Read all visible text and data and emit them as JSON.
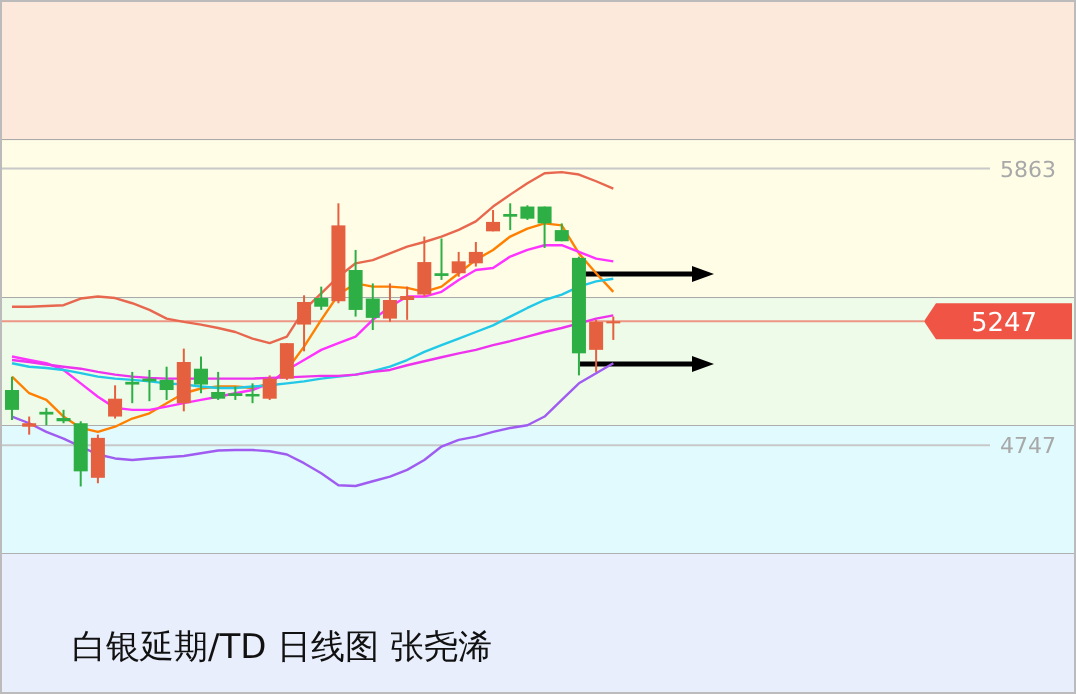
{
  "chart_data": {
    "type": "candlestick",
    "title": "白银延期/TD  日线图 张尧浠",
    "categories": [
      null,
      null,
      null,
      null,
      null,
      null,
      null,
      null,
      null,
      null,
      null,
      null,
      null,
      null,
      null,
      null,
      null,
      null,
      null,
      null,
      null,
      null,
      null,
      null,
      null,
      null,
      null,
      null,
      null,
      null,
      null,
      null,
      null,
      null,
      null,
      null
    ],
    "ohlc": [
      [
        4970,
        5024,
        4849,
        4890
      ],
      [
        4822,
        4863,
        4790,
        4836
      ],
      [
        4882,
        4898,
        4828,
        4871
      ],
      [
        4857,
        4890,
        4836,
        4844
      ],
      [
        4836,
        4844,
        4581,
        4642
      ],
      [
        4616,
        4790,
        4594,
        4777
      ],
      [
        4863,
        4989,
        4855,
        4935
      ],
      [
        5003,
        5043,
        4917,
        4992
      ],
      [
        5016,
        5051,
        4925,
        5005
      ],
      [
        5011,
        5064,
        4930,
        4970
      ],
      [
        4917,
        5137,
        4884,
        5083
      ],
      [
        5056,
        5105,
        4957,
        4992
      ],
      [
        4962,
        5043,
        4930,
        4935
      ],
      [
        4957,
        4984,
        4930,
        4946
      ],
      [
        4954,
        4997,
        4917,
        4944
      ],
      [
        4935,
        5029,
        4930,
        5016
      ],
      [
        5016,
        5159,
        5011,
        5159
      ],
      [
        5234,
        5352,
        5126,
        5325
      ],
      [
        5341,
        5387,
        5293,
        5306
      ],
      [
        5328,
        5723,
        5320,
        5634
      ],
      [
        5454,
        5535,
        5266,
        5293
      ],
      [
        5339,
        5400,
        5212,
        5261
      ],
      [
        5258,
        5400,
        5245,
        5333
      ],
      [
        5333,
        5387,
        5253,
        5349
      ],
      [
        5355,
        5589,
        5347,
        5486
      ],
      [
        5441,
        5581,
        5414,
        5430
      ],
      [
        5441,
        5527,
        5427,
        5489
      ],
      [
        5481,
        5567,
        5468,
        5527
      ],
      [
        5610,
        5696,
        5610,
        5648
      ],
      [
        5680,
        5723,
        5615,
        5669
      ],
      [
        5710,
        5715,
        5656,
        5661
      ],
      [
        5710,
        5710,
        5543,
        5642
      ],
      [
        5615,
        5642,
        5570,
        5570
      ],
      [
        5503,
        5508,
        5029,
        5118
      ],
      [
        5132,
        5253,
        5043,
        5245
      ],
      [
        5242,
        5266,
        5172,
        5247
      ]
    ],
    "colors": [
      "#2eaf45",
      "#e5603f",
      "#2eaf45",
      "#2eaf45",
      "#2eaf45",
      "#e5603f",
      "#e5603f",
      "#2eaf45",
      "#2eaf45",
      "#2eaf45",
      "#e5603f",
      "#2eaf45",
      "#2eaf45",
      "#2eaf45",
      "#2eaf45",
      "#e5603f",
      "#e5603f",
      "#e5603f",
      "#2eaf45",
      "#e5603f",
      "#2eaf45",
      "#2eaf45",
      "#e5603f",
      "#e5603f",
      "#e5603f",
      "#2eaf45",
      "#e5603f",
      "#e5603f",
      "#e5603f",
      "#2eaf45",
      "#2eaf45",
      "#2eaf45",
      "#2eaf45",
      "#2eaf45",
      "#e5603f",
      "#e5603f"
    ],
    "series": [
      {
        "type": "line",
        "color": "#e8674f",
        "values": [
          5306,
          5306,
          5309,
          5312,
          5339,
          5347,
          5341,
          5320,
          5293,
          5258,
          5245,
          5234,
          5220,
          5204,
          5177,
          5159,
          5185,
          5293,
          5360,
          5427,
          5481,
          5494,
          5521,
          5548,
          5567,
          5589,
          5616,
          5650,
          5710,
          5758,
          5804,
          5844,
          5849,
          5839,
          5812,
          5782
        ]
      },
      {
        "type": "line",
        "color": "#ff8000",
        "values": [
          5024,
          4957,
          4930,
          4863,
          4817,
          4801,
          4822,
          4855,
          4876,
          4917,
          4957,
          4976,
          4984,
          4984,
          4978,
          4997,
          5051,
          5145,
          5253,
          5355,
          5400,
          5387,
          5387,
          5382,
          5366,
          5387,
          5441,
          5495,
          5535,
          5589,
          5621,
          5642,
          5634,
          5521,
          5441,
          5366
        ]
      },
      {
        "type": "line",
        "color": "#ff33ff",
        "values": [
          5105,
          5091,
          5078,
          5051,
          4997,
          4943,
          4898,
          4890,
          4890,
          4903,
          4917,
          4930,
          4943,
          4957,
          4970,
          4997,
          5051,
          5091,
          5132,
          5159,
          5185,
          5253,
          5306,
          5347,
          5347,
          5366,
          5414,
          5454,
          5462,
          5508,
          5535,
          5554,
          5554,
          5527,
          5500,
          5489
        ]
      },
      {
        "type": "line",
        "color": "#22c8e8",
        "values": [
          5078,
          5064,
          5059,
          5051,
          5038,
          5024,
          5016,
          5011,
          5005,
          4997,
          4992,
          4984,
          4978,
          4978,
          4984,
          4989,
          4997,
          5005,
          5016,
          5024,
          5032,
          5046,
          5064,
          5091,
          5124,
          5151,
          5177,
          5204,
          5231,
          5266,
          5301,
          5333,
          5355,
          5387,
          5408,
          5419
        ]
      },
      {
        "type": "line",
        "color": "#ee33ee",
        "values": [
          5091,
          5083,
          5073,
          5064,
          5056,
          5043,
          5032,
          5024,
          5019,
          5016,
          5016,
          5016,
          5016,
          5016,
          5016,
          5019,
          5021,
          5024,
          5027,
          5027,
          5032,
          5043,
          5051,
          5070,
          5086,
          5102,
          5118,
          5132,
          5151,
          5167,
          5185,
          5204,
          5220,
          5239,
          5258,
          5271
        ]
      },
      {
        "type": "line",
        "color": "#a05cf0",
        "values": [
          4863,
          4836,
          4801,
          4774,
          4742,
          4710,
          4694,
          4688,
          4694,
          4699,
          4704,
          4715,
          4726,
          4728,
          4728,
          4723,
          4710,
          4675,
          4634,
          4586,
          4583,
          4602,
          4621,
          4648,
          4688,
          4742,
          4769,
          4782,
          4801,
          4817,
          4828,
          4863,
          4930,
          4997,
          5038,
          5078
        ]
      }
    ],
    "ylim": [
      3744,
      6543
    ],
    "yticks": [
      5863,
      4747
    ],
    "grid": "y",
    "ref_lines": [
      {
        "axis": "y",
        "value": 5247,
        "label": "5247",
        "color": "#ef5445"
      }
    ],
    "bands": [
      {
        "axis": "y",
        "from": 5978,
        "to": 6543,
        "color": "#fde9dc"
      },
      {
        "axis": "y",
        "from": 5341,
        "to": 5978,
        "color": "#fffde6"
      },
      {
        "axis": "y",
        "from": 4825,
        "to": 5341,
        "color": "#edfbe8"
      },
      {
        "axis": "y",
        "from": 4309,
        "to": 4825,
        "color": "#e0fafd"
      },
      {
        "axis": "y",
        "from": 3744,
        "to": 4309,
        "color": "#e8eefb"
      }
    ]
  }
}
